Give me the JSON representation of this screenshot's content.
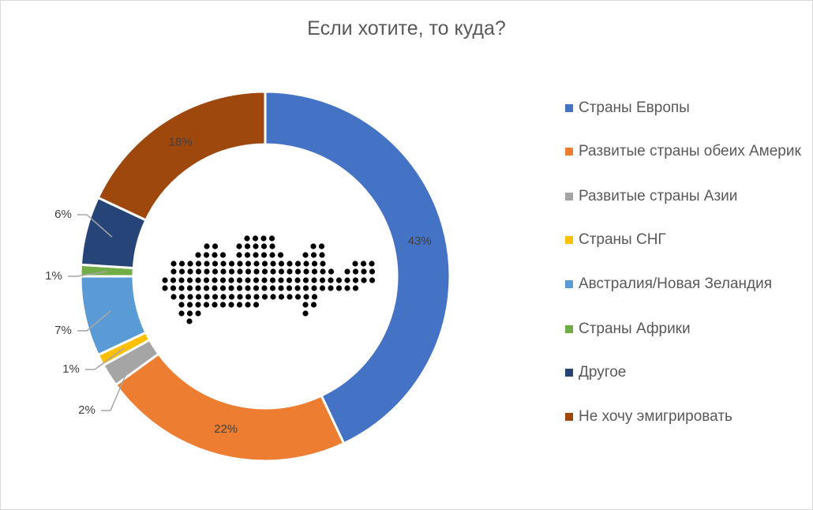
{
  "chart_data": {
    "type": "donut",
    "title": "Если хотите, то куда?",
    "legend_position": "right",
    "slices": [
      {
        "label": "Страны Европы",
        "value": 43,
        "display": "43%",
        "color": "#4472C4"
      },
      {
        "label": "Развитые страны обеих Америк",
        "value": 22,
        "display": "22%",
        "color": "#ED7D31"
      },
      {
        "label": "Развитые страны Азии",
        "value": 2,
        "display": "2%",
        "color": "#A5A5A5"
      },
      {
        "label": "Страны СНГ",
        "value": 1,
        "display": "1%",
        "color": "#FFC000"
      },
      {
        "label": "Австралия/Новая Зеландия",
        "value": 7,
        "display": "7%",
        "color": "#5B9BD5"
      },
      {
        "label": "Страны Африки",
        "value": 1,
        "display": "1%",
        "color": "#70AD47"
      },
      {
        "label": "Другое",
        "value": 6,
        "display": "6%",
        "color": "#264478"
      },
      {
        "label": "Не хочу эмигрировать",
        "value": 18,
        "display": "18%",
        "color": "#9E480E"
      }
    ]
  },
  "center_icon": "russia-map-dots-icon"
}
